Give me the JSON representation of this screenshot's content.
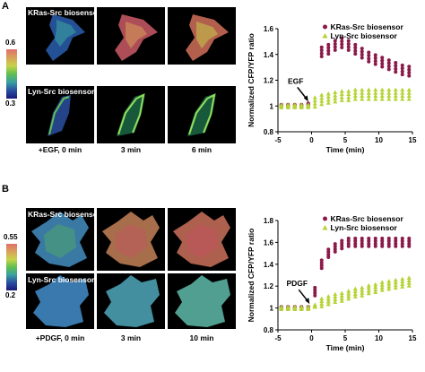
{
  "figure": {
    "panel_a": {
      "letter": "A",
      "row1_label": "KRas-Src biosensor",
      "row2_label": "Lyn-Src biosensor",
      "time_labels": [
        "+EGF, 0 min",
        "3 min",
        "6 min"
      ],
      "colorbar_max": "0.6",
      "colorbar_min": "0.3"
    },
    "panel_b": {
      "letter": "B",
      "row1_label": "KRas-Src biosensor",
      "row2_label": "Lyn-Src biosensor",
      "time_labels": [
        "+PDGF, 0 min",
        "3 min",
        "10 min"
      ],
      "colorbar_max": "0.55",
      "colorbar_min": "0.2"
    },
    "colors": {
      "kras": "#8b1a4a",
      "lyn": "#b5d334",
      "colormap": [
        "#e0706a",
        "#d9a15a",
        "#c7d34a",
        "#5fbf4e",
        "#3aa0a0",
        "#2a4fa0",
        "#1a1a7a"
      ]
    }
  },
  "chart_data": [
    {
      "type": "scatter",
      "xlabel": "Time (min)",
      "ylabel": "Normalized CFP/YFP ratio",
      "xlim": [
        -5,
        15
      ],
      "ylim": [
        0.8,
        1.6
      ],
      "xticks": [
        "-5",
        "0",
        "5",
        "10",
        "15"
      ],
      "yticks": [
        "0.8",
        "1",
        "1.2",
        "1.4",
        "1.6"
      ],
      "annotation": "EGF",
      "legend_position": "top-right",
      "series": [
        {
          "name": "KRas-Src biosensor",
          "marker": "circle",
          "x": [
            -4.5,
            -3.5,
            -2.5,
            -1.5,
            -0.5,
            1.5,
            2.5,
            3.5,
            4.5,
            5.5,
            6.5,
            7.5,
            8.5,
            9.5,
            10.5,
            11.5,
            12.5,
            13.5,
            14.5
          ],
          "y": [
            1.0,
            1.0,
            1.0,
            1.0,
            1.01,
            1.42,
            1.44,
            1.47,
            1.49,
            1.47,
            1.44,
            1.41,
            1.38,
            1.36,
            1.34,
            1.32,
            1.3,
            1.28,
            1.27
          ]
        },
        {
          "name": "Lyn-Src biosensor",
          "marker": "triangle",
          "x": [
            -4.5,
            -3.5,
            -2.5,
            -1.5,
            -0.5,
            0.5,
            1.5,
            2.5,
            3.5,
            4.5,
            5.5,
            6.5,
            7.5,
            8.5,
            9.5,
            10.5,
            11.5,
            12.5,
            13.5,
            14.5
          ],
          "y": [
            1.0,
            1.0,
            1.0,
            1.0,
            1.0,
            1.03,
            1.05,
            1.06,
            1.07,
            1.08,
            1.08,
            1.09,
            1.09,
            1.09,
            1.09,
            1.09,
            1.09,
            1.09,
            1.09,
            1.09
          ]
        }
      ]
    },
    {
      "type": "scatter",
      "xlabel": "Time (min)",
      "ylabel": "Normalized CFP/YFP ratio",
      "xlim": [
        -5,
        15
      ],
      "ylim": [
        0.8,
        1.8
      ],
      "xticks": [
        "-5",
        "0",
        "5",
        "10",
        "15"
      ],
      "yticks": [
        "0.8",
        "1",
        "1.2",
        "1.4",
        "1.6",
        "1.8"
      ],
      "annotation": "PDGF",
      "legend_position": "top-right",
      "series": [
        {
          "name": "KRas-Src biosensor",
          "marker": "circle",
          "x": [
            -4.5,
            -3.5,
            -2.5,
            -1.5,
            -0.5,
            0.5,
            1.5,
            2.5,
            3.5,
            4.5,
            5.5,
            6.5,
            7.5,
            8.5,
            9.5,
            10.5,
            11.5,
            12.5,
            13.5,
            14.5
          ],
          "y": [
            1.0,
            1.0,
            1.0,
            1.0,
            1.0,
            1.15,
            1.4,
            1.5,
            1.55,
            1.58,
            1.6,
            1.6,
            1.6,
            1.6,
            1.6,
            1.6,
            1.6,
            1.6,
            1.6,
            1.6
          ]
        },
        {
          "name": "Lyn-Src biosensor",
          "marker": "triangle",
          "x": [
            -4.5,
            -3.5,
            -2.5,
            -1.5,
            -0.5,
            0.5,
            1.5,
            2.5,
            3.5,
            4.5,
            5.5,
            6.5,
            7.5,
            8.5,
            9.5,
            10.5,
            11.5,
            12.5,
            13.5,
            14.5
          ],
          "y": [
            1.0,
            1.0,
            1.0,
            1.0,
            1.0,
            1.02,
            1.05,
            1.07,
            1.09,
            1.1,
            1.12,
            1.14,
            1.15,
            1.17,
            1.18,
            1.2,
            1.21,
            1.22,
            1.23,
            1.24
          ]
        }
      ]
    }
  ]
}
